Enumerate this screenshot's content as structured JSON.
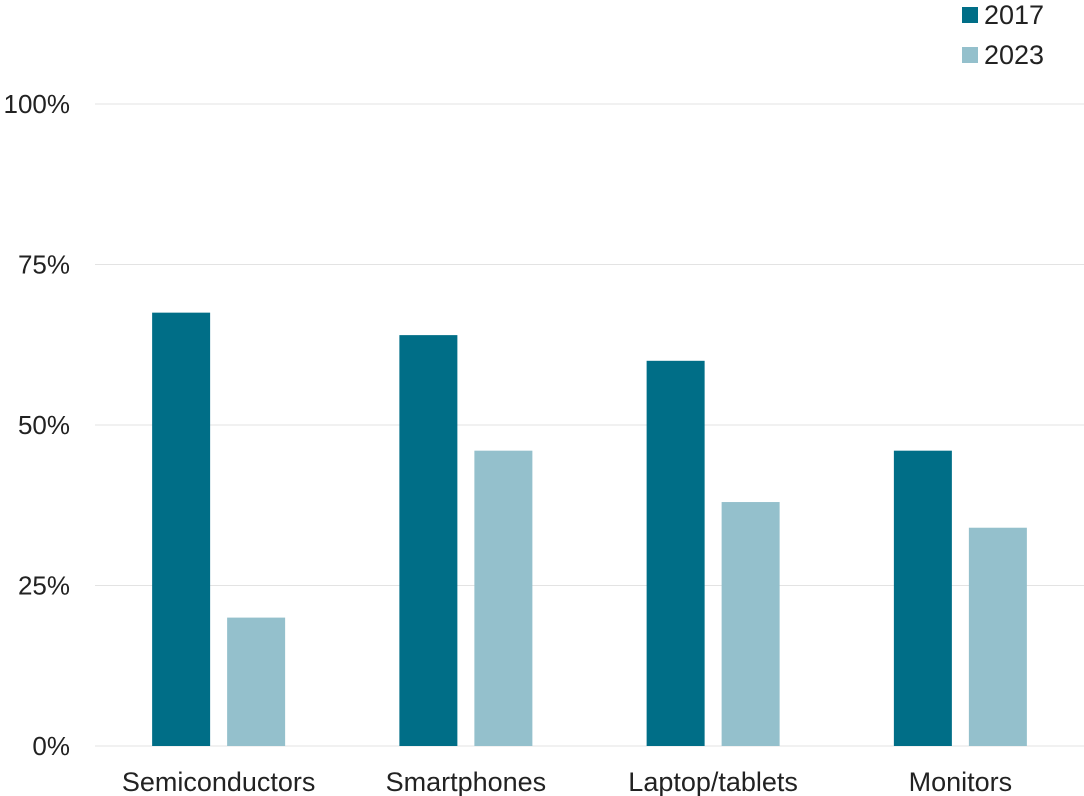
{
  "chart_data": {
    "type": "bar",
    "categories": [
      "Semiconductors",
      "Smartphones",
      "Laptop/tablets",
      "Monitors"
    ],
    "series": [
      {
        "name": "2017",
        "values": [
          67.5,
          64,
          60,
          46
        ],
        "color": "#006e87"
      },
      {
        "name": "2023",
        "values": [
          20,
          46,
          38,
          34
        ],
        "color": "#94c0cc"
      }
    ],
    "yticks": [
      "0%",
      "25%",
      "50%",
      "75%",
      "100%"
    ],
    "ytick_values": [
      0,
      25,
      50,
      75,
      100
    ],
    "ylim": [
      0,
      100
    ],
    "grid": true,
    "legend_position": "top-right",
    "title": "",
    "xlabel": "",
    "ylabel": ""
  }
}
